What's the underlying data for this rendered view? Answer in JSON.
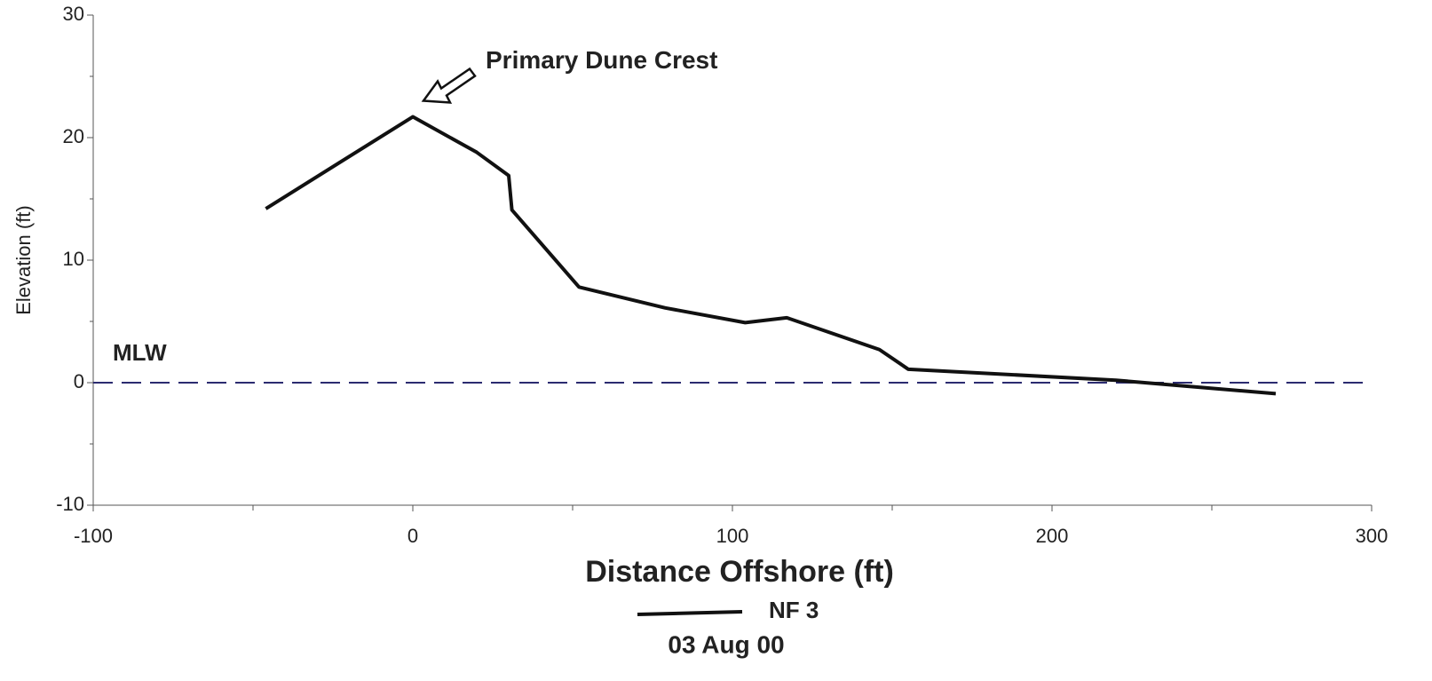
{
  "chart_data": {
    "type": "line",
    "x_label": "Distance Offshore (ft)",
    "y_label": "Elevation (ft)",
    "xlim": [
      -100,
      300
    ],
    "ylim": [
      -10,
      30
    ],
    "xticks": [
      -100,
      0,
      100,
      200,
      300
    ],
    "yticks": [
      -10,
      0,
      10,
      20,
      30
    ],
    "series": [
      {
        "name": "NF 3",
        "color": "#111111",
        "x": [
          -46,
          0,
          20,
          30,
          31,
          52,
          79,
          104,
          117,
          146,
          155,
          220,
          270
        ],
        "values": [
          14.2,
          21.7,
          18.8,
          16.9,
          14.1,
          7.8,
          6.1,
          4.9,
          5.3,
          2.7,
          1.1,
          0.2,
          -0.9
        ]
      }
    ],
    "legend_subtitle": "03 Aug 00",
    "reference_line": {
      "label": "MLW",
      "value": 0,
      "color": "#2b2b70"
    },
    "annotation": {
      "text": "Primary Dune Crest",
      "x": 0,
      "y": 21.7
    }
  }
}
